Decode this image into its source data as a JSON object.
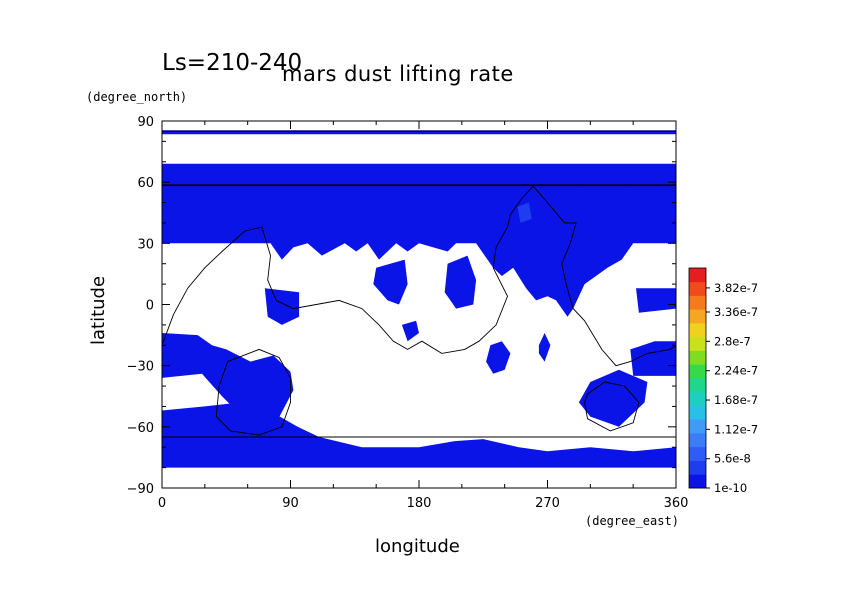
{
  "chart_data": {
    "type": "heatmap",
    "title": "mars dust lifting rate",
    "subtitle": "Ls=210-240",
    "xlabel": "longitude",
    "ylabel": "latitude",
    "x_unit": "(degree_east)",
    "y_unit": "(degree_north)",
    "xlim": [
      0,
      360
    ],
    "ylim": [
      -90,
      90
    ],
    "x_ticks": [
      0,
      90,
      180,
      270,
      360
    ],
    "x_tick_labels": [
      "0",
      "90",
      "180",
      "270",
      "360"
    ],
    "y_ticks": [
      -90,
      -60,
      -30,
      0,
      30,
      60,
      90
    ],
    "y_tick_labels": [
      "−90",
      "−60",
      "−30",
      "0",
      "30",
      "60",
      "90"
    ],
    "colorbar": {
      "min": 1e-10,
      "max": 4.2e-07,
      "labels": [
        {
          "value": 1e-10,
          "label": "1e-10"
        },
        {
          "value": 5.6e-08,
          "label": "5.6e-8"
        },
        {
          "value": 1.12e-07,
          "label": "1.12e-7"
        },
        {
          "value": 1.68e-07,
          "label": "1.68e-7"
        },
        {
          "value": 2.24e-07,
          "label": "2.24e-7"
        },
        {
          "value": 2.8e-07,
          "label": "2.8e-7"
        },
        {
          "value": 3.36e-07,
          "label": "3.36e-7"
        },
        {
          "value": 3.82e-07,
          "label": "3.82e-7"
        }
      ],
      "colors": [
        "#0a14e6",
        "#1f3df0",
        "#2f5cf5",
        "#3c7df7",
        "#3f9bf5",
        "#29bfe6",
        "#1ecfc0",
        "#1fd68c",
        "#36d94a",
        "#7fdc1e",
        "#c8e11c",
        "#f0d21e",
        "#f5a623",
        "#f57a1e",
        "#f04b1a",
        "#e61e1e"
      ]
    },
    "regions": [
      {
        "value": 1e-10,
        "polygon": [
          [
            0,
            69
          ],
          [
            360,
            69
          ],
          [
            360,
            30
          ],
          [
            330,
            30
          ],
          [
            322,
            22
          ],
          [
            312,
            18
          ],
          [
            304,
            14
          ],
          [
            296,
            10
          ],
          [
            292,
            4
          ],
          [
            288,
            -2
          ],
          [
            284,
            -6
          ],
          [
            276,
            2
          ],
          [
            270,
            4
          ],
          [
            262,
            2
          ],
          [
            255,
            8
          ],
          [
            246,
            18
          ],
          [
            238,
            14
          ],
          [
            232,
            18
          ],
          [
            226,
            24
          ],
          [
            220,
            30
          ],
          [
            206,
            30
          ],
          [
            200,
            26
          ],
          [
            190,
            28
          ],
          [
            180,
            30
          ],
          [
            172,
            26
          ],
          [
            164,
            30
          ],
          [
            152,
            22
          ],
          [
            144,
            30
          ],
          [
            136,
            26
          ],
          [
            128,
            30
          ],
          [
            112,
            24
          ],
          [
            102,
            30
          ],
          [
            92,
            28
          ],
          [
            84,
            22
          ],
          [
            76,
            30
          ],
          [
            0,
            30
          ]
        ]
      },
      {
        "value": 1e-10,
        "polygon": [
          [
            0,
            85.5
          ],
          [
            360,
            85.5
          ],
          [
            360,
            83.5
          ],
          [
            0,
            83.5
          ]
        ]
      },
      {
        "value": 1e-10,
        "polygon": [
          [
            0,
            -80
          ],
          [
            360,
            -80
          ],
          [
            360,
            -70
          ],
          [
            330,
            -72
          ],
          [
            300,
            -70
          ],
          [
            270,
            -72
          ],
          [
            250,
            -70
          ],
          [
            225,
            -66
          ],
          [
            205,
            -67
          ],
          [
            180,
            -70
          ],
          [
            140,
            -70
          ],
          [
            110,
            -65
          ],
          [
            95,
            -60
          ],
          [
            75,
            -52
          ],
          [
            55,
            -48
          ],
          [
            30,
            -50
          ],
          [
            0,
            -52
          ]
        ]
      },
      {
        "value": 1e-10,
        "polygon": [
          [
            0,
            -14
          ],
          [
            25,
            -15
          ],
          [
            35,
            -20
          ],
          [
            45,
            -22
          ],
          [
            62,
            -28
          ],
          [
            78,
            -25
          ],
          [
            90,
            -33
          ],
          [
            92,
            -42
          ],
          [
            80,
            -58
          ],
          [
            62,
            -55
          ],
          [
            52,
            -52
          ],
          [
            42,
            -45
          ],
          [
            28,
            -34
          ],
          [
            0,
            -36
          ]
        ]
      },
      {
        "value": 1e-10,
        "polygon": [
          [
            328,
            -22
          ],
          [
            345,
            -18
          ],
          [
            360,
            -18
          ],
          [
            360,
            -35
          ],
          [
            330,
            -35
          ]
        ]
      },
      {
        "value": 1e-10,
        "polygon": [
          [
            300,
            -38
          ],
          [
            320,
            -32
          ],
          [
            340,
            -38
          ],
          [
            338,
            -48
          ],
          [
            320,
            -60
          ],
          [
            300,
            -55
          ],
          [
            292,
            -48
          ]
        ]
      },
      {
        "value": 1e-10,
        "polygon": [
          [
            230,
            -20
          ],
          [
            238,
            -18
          ],
          [
            244,
            -24
          ],
          [
            240,
            -32
          ],
          [
            232,
            -34
          ],
          [
            227,
            -28
          ]
        ]
      },
      {
        "value": 1e-10,
        "polygon": [
          [
            264,
            -20
          ],
          [
            268,
            -14
          ],
          [
            272,
            -20
          ],
          [
            268,
            -28
          ],
          [
            264,
            -24
          ]
        ]
      },
      {
        "value": 1e-10,
        "polygon": [
          [
            150,
            18
          ],
          [
            170,
            22
          ],
          [
            172,
            10
          ],
          [
            166,
            0
          ],
          [
            158,
            2
          ],
          [
            148,
            10
          ]
        ]
      },
      {
        "value": 1e-10,
        "polygon": [
          [
            200,
            20
          ],
          [
            214,
            24
          ],
          [
            220,
            12
          ],
          [
            218,
            0
          ],
          [
            206,
            -2
          ],
          [
            198,
            6
          ]
        ]
      },
      {
        "value": 1e-10,
        "polygon": [
          [
            72,
            8
          ],
          [
            96,
            6
          ],
          [
            96,
            -6
          ],
          [
            84,
            -10
          ],
          [
            74,
            -6
          ]
        ]
      },
      {
        "value": 1e-10,
        "polygon": [
          [
            332,
            8
          ],
          [
            360,
            8
          ],
          [
            360,
            -2
          ],
          [
            334,
            -4
          ]
        ]
      },
      {
        "value": 1e-10,
        "polygon": [
          [
            168,
            -10
          ],
          [
            178,
            -8
          ],
          [
            180,
            -14
          ],
          [
            172,
            -18
          ]
        ]
      },
      {
        "value": 2e-08,
        "polygon": [
          [
            258,
            42
          ],
          [
            266,
            46
          ],
          [
            270,
            40
          ],
          [
            262,
            34
          ],
          [
            254,
            36
          ]
        ]
      },
      {
        "value": 1.6e-08,
        "polygon": [
          [
            292,
            60
          ],
          [
            318,
            62
          ],
          [
            330,
            56
          ],
          [
            312,
            52
          ],
          [
            294,
            54
          ]
        ]
      },
      {
        "value": 1.5e-08,
        "polygon": [
          [
            40,
            -50
          ],
          [
            60,
            -48
          ],
          [
            70,
            -58
          ],
          [
            52,
            -60
          ]
        ]
      },
      {
        "value": 4e-08,
        "polygon": [
          [
            249,
            48
          ],
          [
            257,
            50
          ],
          [
            259,
            42
          ],
          [
            251,
            40
          ]
        ]
      }
    ],
    "contours": [
      {
        "type": "latitude_line",
        "lat": 58.5
      },
      {
        "type": "latitude_line",
        "lat": 85
      },
      {
        "type": "latitude_line",
        "lat": -65
      },
      {
        "type": "path",
        "points": [
          [
            0,
            -20
          ],
          [
            8,
            -5
          ],
          [
            18,
            8
          ],
          [
            30,
            18
          ],
          [
            42,
            26
          ],
          [
            58,
            36
          ],
          [
            70,
            38
          ],
          [
            76,
            24
          ],
          [
            74,
            12
          ],
          [
            80,
            2
          ],
          [
            92,
            -2
          ],
          [
            108,
            0
          ],
          [
            124,
            2
          ],
          [
            140,
            -2
          ],
          [
            152,
            -10
          ],
          [
            162,
            -18
          ],
          [
            172,
            -22
          ],
          [
            182,
            -18
          ],
          [
            196,
            -24
          ],
          [
            212,
            -22
          ],
          [
            222,
            -18
          ],
          [
            234,
            -10
          ],
          [
            242,
            4
          ],
          [
            232,
            18
          ],
          [
            234,
            28
          ],
          [
            242,
            38
          ],
          [
            244,
            44
          ],
          [
            252,
            52
          ],
          [
            260,
            58
          ],
          [
            270,
            50
          ],
          [
            282,
            40
          ],
          [
            290,
            40
          ],
          [
            286,
            30
          ],
          [
            280,
            20
          ],
          [
            283,
            10
          ],
          [
            288,
            -2
          ],
          [
            296,
            -8
          ],
          [
            308,
            -22
          ],
          [
            318,
            -30
          ],
          [
            328,
            -28
          ],
          [
            340,
            -24
          ],
          [
            356,
            -22
          ],
          [
            360,
            -20
          ]
        ]
      },
      {
        "type": "path",
        "points": [
          [
            46,
            -28
          ],
          [
            68,
            -22
          ],
          [
            82,
            -26
          ],
          [
            90,
            -36
          ],
          [
            90,
            -48
          ],
          [
            84,
            -60
          ],
          [
            68,
            -64
          ],
          [
            48,
            -62
          ],
          [
            38,
            -55
          ],
          [
            40,
            -40
          ],
          [
            46,
            -28
          ]
        ]
      },
      {
        "type": "path",
        "points": [
          [
            298,
            -44
          ],
          [
            310,
            -38
          ],
          [
            324,
            -40
          ],
          [
            334,
            -48
          ],
          [
            330,
            -58
          ],
          [
            314,
            -62
          ],
          [
            298,
            -56
          ],
          [
            296,
            -48
          ],
          [
            298,
            -44
          ]
        ]
      }
    ]
  }
}
